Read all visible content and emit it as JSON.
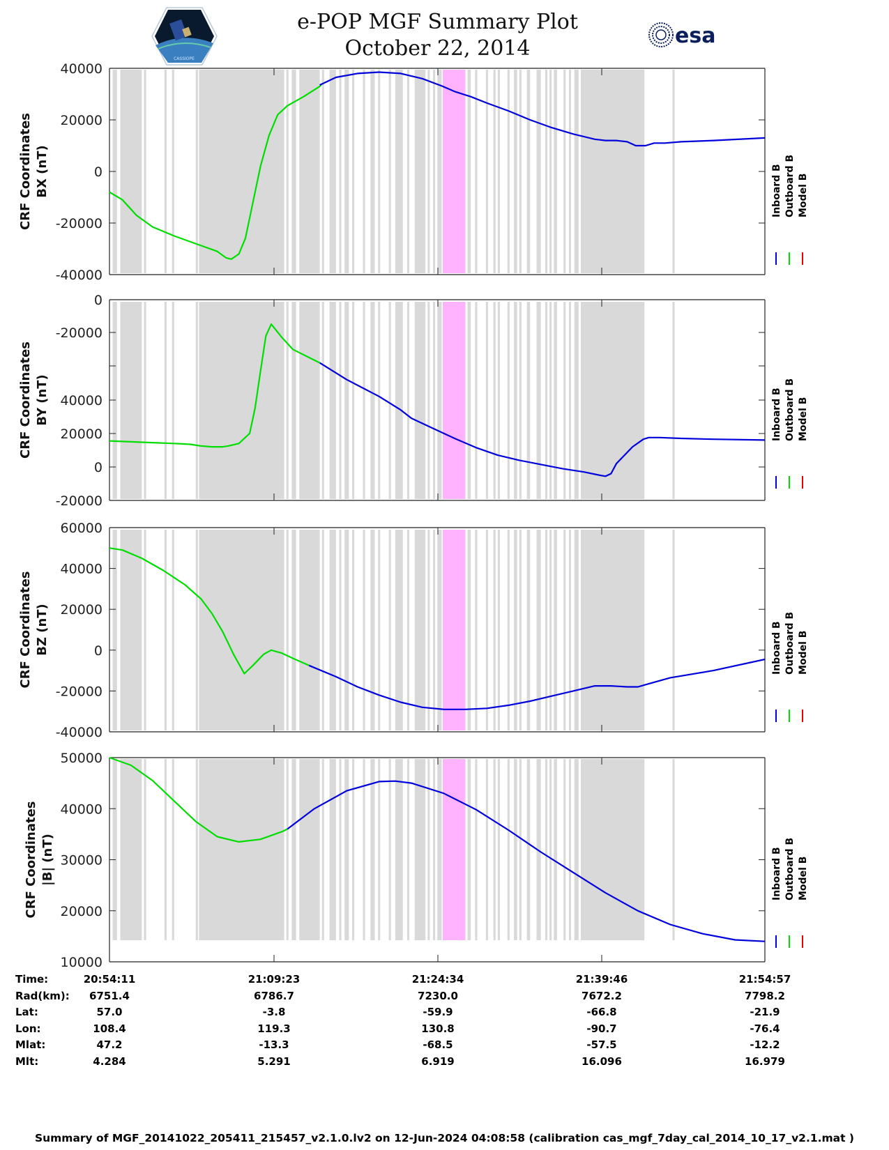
{
  "header": {
    "title_line1": "e-POP MGF Summary Plot",
    "title_line2": "October 22, 2014",
    "left_logo": "cassiope-mission-logo",
    "right_logo": "esa-logo",
    "right_logo_text": "esa"
  },
  "colors": {
    "inboard": "#0000dd",
    "outboard": "#00dd00",
    "model": "#ee0000",
    "data_gap_shading": "#d9d9d9",
    "highlight_band": "#ffb3ff"
  },
  "legend": {
    "entries": [
      {
        "label": "Inboard B",
        "color": "#0000dd"
      },
      {
        "label": "Outboard B",
        "color": "#00dd00"
      },
      {
        "label": "Model B",
        "color": "#ee0000"
      }
    ],
    "placement": "right"
  },
  "chart_data": [
    {
      "type": "line",
      "id": "bx",
      "ylabel_line1": "CRF Coordinates",
      "ylabel_line2": "BX (nT)",
      "ylim": [
        -40000,
        40000
      ],
      "yticks": [
        40000,
        20000,
        0,
        -20000,
        -40000
      ],
      "ytick_labels": [
        "40000",
        "20000",
        "0",
        "-20000",
        "-40000"
      ],
      "xlim_minutes": [
        0,
        60.77
      ],
      "outboard": {
        "x": [
          0,
          0.8,
          1.2,
          2.5,
          4,
          6,
          8,
          10,
          10.8,
          11.3,
          12,
          12.6,
          13.2,
          14,
          14.8,
          15.6,
          16.5,
          18,
          19.5,
          19.7
        ],
        "y": [
          -8000,
          -10000,
          -11000,
          -17000,
          -21500,
          -25000,
          -28000,
          -31000,
          -33500,
          -34000,
          -32000,
          -26000,
          -14000,
          2000,
          14000,
          22000,
          25500,
          29000,
          33000,
          34000
        ]
      },
      "inboard": {
        "x": [
          19.5,
          21,
          23,
          25,
          27,
          29,
          30.9,
          32,
          33.5,
          35,
          37,
          39,
          41,
          43,
          45,
          46,
          47,
          48,
          48.8,
          49.7,
          50.5,
          51.5,
          53,
          56,
          60.77
        ],
        "y": [
          33500,
          36500,
          38000,
          38500,
          38000,
          36000,
          33000,
          31000,
          29000,
          26500,
          23500,
          20000,
          17000,
          14500,
          12500,
          12000,
          12000,
          11500,
          10000,
          10000,
          11000,
          11000,
          11500,
          12000,
          13000
        ]
      }
    },
    {
      "type": "line",
      "id": "by",
      "ylabel_line1": "CRF Coordinates",
      "ylabel_line2": "BY (nT)",
      "ylim_axis_labels_note": "axis labels as printed",
      "yticks_printed": [
        "0",
        "-20000",
        "",
        "40000",
        "20000",
        "0",
        "-20000"
      ],
      "outboard": {
        "x": [
          0,
          2,
          4,
          6,
          7.5,
          8.5,
          9.5,
          10.5,
          11,
          12,
          13,
          13.5,
          14,
          14.5,
          15,
          16,
          17,
          19.5
        ],
        "y": [
          15500,
          15000,
          14500,
          14000,
          13500,
          12500,
          12000,
          12000,
          12500,
          14000,
          20000,
          35000,
          57000,
          78000,
          85000,
          77000,
          70000,
          62000
        ]
      },
      "inboard": {
        "x": [
          19.5,
          22,
          25,
          27,
          28,
          30,
          32,
          34,
          36,
          38,
          40,
          42,
          44,
          45.5,
          46,
          46.5,
          47,
          48.5,
          49.5,
          50,
          51,
          53,
          56,
          60.77
        ],
        "y": [
          62000,
          52000,
          42000,
          34000,
          29000,
          23000,
          17000,
          11500,
          7000,
          4000,
          1500,
          -1000,
          -3000,
          -5000,
          -5500,
          -4000,
          2000,
          12000,
          16500,
          17500,
          17500,
          17000,
          16500,
          16000
        ]
      }
    },
    {
      "type": "line",
      "id": "bz",
      "ylabel_line1": "CRF Coordinates",
      "ylabel_line2": "BZ (nT)",
      "ylim": [
        -40000,
        60000
      ],
      "yticks": [
        60000,
        40000,
        20000,
        0,
        -20000,
        -40000
      ],
      "ytick_labels": [
        "60000",
        "40000",
        "20000",
        "0",
        "-20000",
        "-40000"
      ],
      "outboard": {
        "x": [
          0,
          1.2,
          3,
          5,
          7,
          8.5,
          9.5,
          10.5,
          11.5,
          12.5,
          13.3,
          14.3,
          15,
          16,
          17,
          18.5
        ],
        "y": [
          50000,
          49000,
          45000,
          39000,
          32000,
          25000,
          18000,
          9000,
          -2000,
          -11500,
          -7500,
          -2000,
          0,
          -1500,
          -4000,
          -7500
        ]
      },
      "inboard": {
        "x": [
          18.5,
          21,
          23,
          25,
          27,
          29,
          31,
          33,
          35,
          37,
          39,
          41,
          43,
          45,
          46.5,
          48,
          49,
          50,
          52,
          56,
          60.77
        ],
        "y": [
          -7500,
          -13000,
          -18000,
          -22000,
          -25500,
          -28000,
          -29000,
          -29000,
          -28500,
          -27000,
          -25000,
          -22500,
          -20000,
          -17500,
          -17500,
          -18000,
          -18000,
          -16500,
          -13500,
          -10000,
          -4500
        ]
      }
    },
    {
      "type": "line",
      "id": "bmag",
      "ylabel_line1": "CRF Coordinates",
      "ylabel_line2": "|B| (nT)",
      "ylim": [
        10000,
        50000
      ],
      "yticks": [
        50000,
        40000,
        30000,
        20000,
        10000
      ],
      "ytick_labels": [
        "50000",
        "40000",
        "30000",
        "20000",
        "10000"
      ],
      "outboard": {
        "x": [
          0,
          2,
          4,
          6,
          8,
          10,
          12,
          14,
          16,
          16.5
        ],
        "y": [
          50000,
          48500,
          45500,
          41500,
          37500,
          34500,
          33500,
          34000,
          35500,
          36000
        ]
      },
      "inboard": {
        "x": [
          16.5,
          19,
          22,
          25,
          26.5,
          28,
          31,
          34,
          37,
          40,
          43,
          46,
          49,
          52,
          55,
          58,
          60.77
        ],
        "y": [
          36000,
          40000,
          43500,
          45300,
          45400,
          45000,
          43000,
          39800,
          35800,
          31500,
          27500,
          23500,
          20000,
          17300,
          15500,
          14300,
          14000
        ]
      }
    }
  ],
  "shading": {
    "gray_bands_minutes": [
      [
        0.3,
        0.7
      ],
      [
        1.0,
        3.0
      ],
      [
        3.2,
        3.4
      ],
      [
        5.1,
        5.3
      ],
      [
        5.8,
        6.0
      ],
      [
        8.0,
        8.2
      ],
      [
        8.3,
        16.2
      ],
      [
        16.4,
        16.6
      ],
      [
        16.9,
        17.3
      ],
      [
        17.6,
        19.5
      ],
      [
        19.7,
        19.9
      ],
      [
        20.4,
        21.0
      ],
      [
        21.3,
        21.5
      ],
      [
        21.8,
        22.2
      ],
      [
        22.5,
        22.7
      ],
      [
        23.5,
        23.7
      ],
      [
        24.2,
        24.6
      ],
      [
        24.9,
        25.1
      ],
      [
        25.9,
        26.1
      ],
      [
        26.5,
        27.2
      ],
      [
        27.6,
        27.8
      ],
      [
        28.3,
        29.3
      ],
      [
        29.5,
        29.7
      ],
      [
        30.0,
        30.2
      ],
      [
        30.4,
        30.8
      ],
      [
        31.1,
        31.3
      ],
      [
        31.6,
        31.8
      ],
      [
        32.6,
        32.8
      ],
      [
        33.2,
        33.5
      ],
      [
        33.9,
        34.1
      ],
      [
        34.9,
        35.1
      ],
      [
        35.6,
        35.8
      ],
      [
        36.0,
        36.2
      ],
      [
        36.9,
        37.1
      ],
      [
        37.5,
        37.8
      ],
      [
        38.0,
        38.2
      ],
      [
        38.7,
        39.0
      ],
      [
        39.6,
        40.0
      ],
      [
        40.4,
        40.6
      ],
      [
        40.8,
        41.0
      ],
      [
        41.2,
        41.5
      ],
      [
        42.1,
        42.3
      ],
      [
        42.6,
        42.8
      ],
      [
        43.1,
        43.5
      ],
      [
        43.7,
        49.6
      ],
      [
        52.2,
        52.4
      ]
    ],
    "highlight_band_minutes": [
      30.9,
      33.0
    ]
  },
  "x_axis": {
    "tick_times": [
      "20:54:11",
      "21:09:23",
      "21:24:34",
      "21:39:46",
      "21:54:57"
    ]
  },
  "ephemeris": {
    "rows": [
      {
        "label": "Time:",
        "values": [
          "20:54:11",
          "21:09:23",
          "21:24:34",
          "21:39:46",
          "21:54:57"
        ]
      },
      {
        "label": "Rad(km):",
        "values": [
          "6751.4",
          "6786.7",
          "7230.0",
          "7672.2",
          "7798.2"
        ]
      },
      {
        "label": "Lat:",
        "values": [
          "57.0",
          "-3.8",
          "-59.9",
          "-66.8",
          "-21.9"
        ]
      },
      {
        "label": "Lon:",
        "values": [
          "108.4",
          "119.3",
          "130.8",
          "-90.7",
          "-76.4"
        ]
      },
      {
        "label": "Mlat:",
        "values": [
          "47.2",
          "-13.3",
          "-68.5",
          "-57.5",
          "-12.2"
        ]
      },
      {
        "label": "Mlt:",
        "values": [
          "4.284",
          "5.291",
          "6.919",
          "16.096",
          "16.979"
        ]
      }
    ]
  },
  "footer": {
    "text": "Summary of MGF_20141022_205411_215457_v2.1.0.lv2 on 12-Jun-2024 04:08:58 (calibration cas_mgf_7day_cal_2014_10_17_v2.1.mat )"
  }
}
